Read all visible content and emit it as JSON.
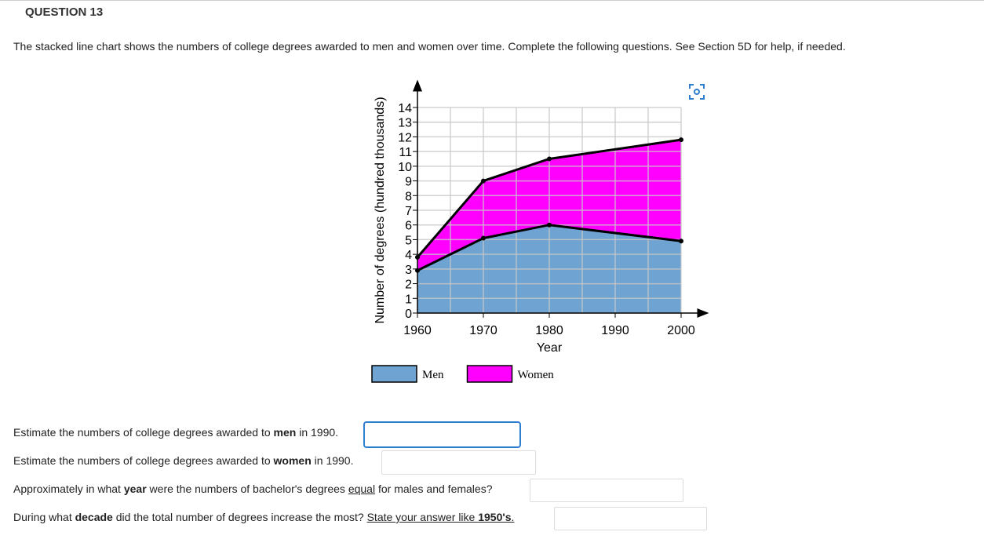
{
  "header": {
    "title": "QUESTION 13"
  },
  "intro": "The stacked line chart shows the numbers of college degrees awarded to men and women over time.  Complete the following questions.  See Section 5D for help, if needed.",
  "chart_data": {
    "type": "stacked-area",
    "x": [
      1960,
      1970,
      1980,
      2000
    ],
    "series": [
      {
        "name": "Men",
        "color": "#6fa3d2",
        "values": [
          2.9,
          5.1,
          6,
          4.9
        ]
      },
      {
        "name": "Women",
        "color": "#ff00ff",
        "values": [
          0.9,
          3.9,
          4.5,
          6.9
        ]
      }
    ],
    "x_label": "Year",
    "y_label": "Number of degrees (hundred thousands)",
    "xlim": [
      1960,
      2000
    ],
    "xticks": [
      1960,
      1970,
      1980,
      1990,
      2000
    ],
    "ylim": [
      0,
      14
    ],
    "yticks": [
      0,
      1,
      2,
      3,
      4,
      5,
      6,
      7,
      8,
      9,
      10,
      11,
      12,
      13,
      14
    ],
    "grid": true,
    "legend": "bottom"
  },
  "questions": [
    [
      "Estimate the numbers of college degrees awarded to ",
      "men",
      " in 1990."
    ],
    [
      "Estimate the numbers of college degrees awarded to ",
      "women",
      " in 1990."
    ],
    [
      "Approximately in what ",
      "year",
      " were the numbers of bachelor's degrees ",
      "equal",
      " for males and females?"
    ],
    [
      "During what ",
      "decade",
      " did the total number of degrees increase the most? ",
      "State your answer like ",
      "1950's",
      "."
    ]
  ]
}
